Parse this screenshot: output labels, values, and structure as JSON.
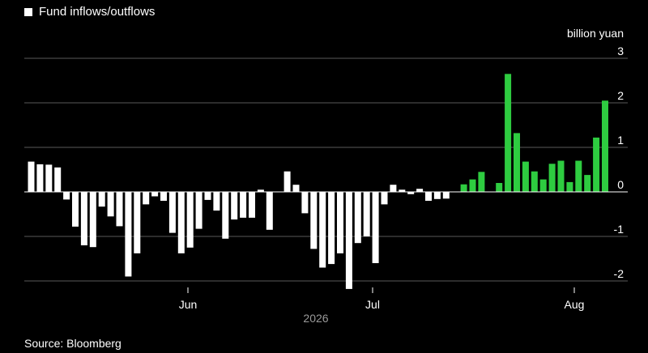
{
  "legend": {
    "label": "Fund inflows/outflows"
  },
  "unit_label": "billion yuan",
  "source": "Source: Bloomberg",
  "colors": {
    "negative_or_early": "#ffffff",
    "positive_late": "#2ecc40",
    "grid": "#5a5a5a",
    "background": "#000000"
  },
  "chart_data": {
    "type": "bar",
    "title": "",
    "ylabel": "billion yuan",
    "ylim": [
      -2.2,
      3
    ],
    "yticks": [
      3,
      2,
      1,
      0,
      -1,
      -2
    ],
    "x_tick_labels": [
      "Jun",
      "Jul",
      "Aug"
    ],
    "x_year_label": "2026",
    "grid": true,
    "legend_position": "top-left",
    "series": [
      {
        "name": "Fund inflows/outflows",
        "values": [
          0.68,
          0.62,
          0.61,
          0.55,
          -0.17,
          -0.78,
          -1.2,
          -1.24,
          -0.33,
          -0.55,
          -0.77,
          -1.9,
          -1.38,
          -0.28,
          -0.1,
          -0.2,
          -0.92,
          -1.38,
          -1.25,
          -0.83,
          -0.18,
          -0.42,
          -1.05,
          -0.62,
          -0.58,
          -0.58,
          0.05,
          -0.85,
          0.0,
          0.46,
          0.16,
          -0.48,
          -1.28,
          -1.7,
          -1.62,
          -1.38,
          -2.18,
          -1.15,
          -1.0,
          -1.6,
          -0.28,
          0.16,
          0.05,
          -0.05,
          0.07,
          -0.2,
          -0.16,
          -0.15,
          0.0,
          0.17,
          0.28,
          0.45,
          0.0,
          0.2,
          2.65,
          1.32,
          0.68,
          0.46,
          0.28,
          0.63,
          0.7,
          0.22,
          0.7,
          0.38,
          1.22,
          2.05
        ]
      }
    ],
    "green_from_index": 48
  }
}
